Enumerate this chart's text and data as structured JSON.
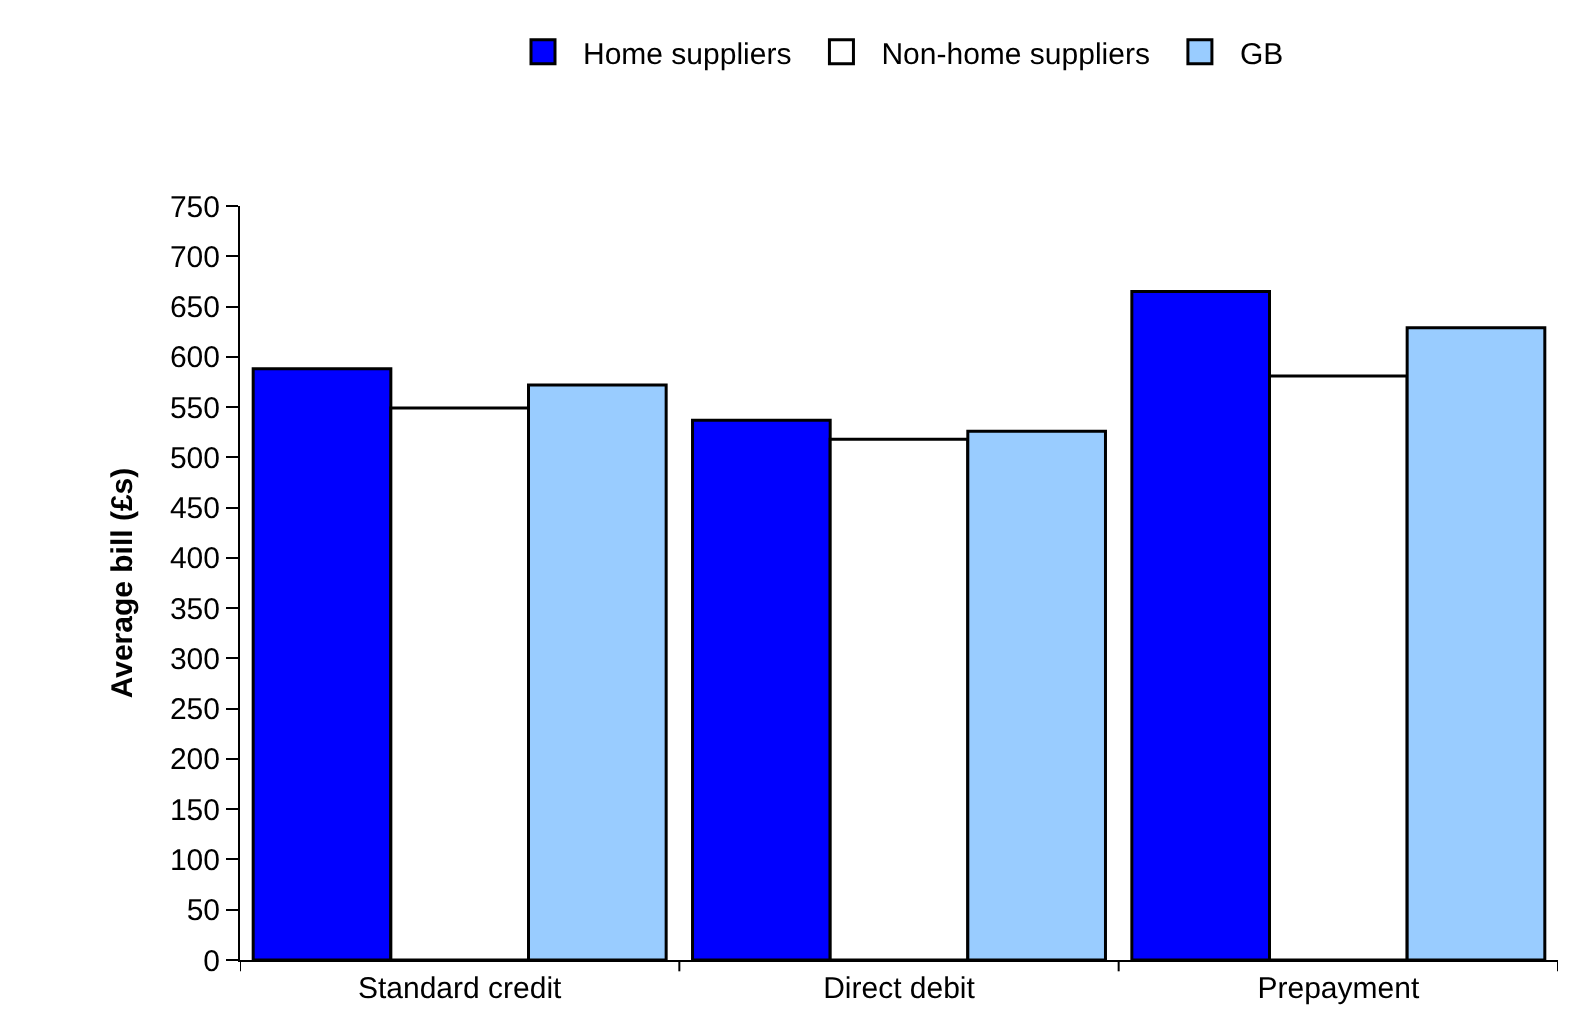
{
  "chart_data": {
    "type": "bar",
    "ylabel": "Average bill (£s)",
    "categories": [
      "Standard credit",
      "Direct debit",
      "Prepayment"
    ],
    "series": [
      {
        "name": "Home suppliers",
        "color": "#0000ff",
        "values": [
          588,
          537,
          665
        ]
      },
      {
        "name": "Non-home suppliers",
        "color": "#ffffff",
        "values": [
          549,
          518,
          581
        ]
      },
      {
        "name": "GB",
        "color": "#99ccff",
        "values": [
          572,
          526,
          629
        ]
      }
    ],
    "ylim": [
      0,
      750
    ],
    "yticks": [
      0,
      50,
      100,
      150,
      200,
      250,
      300,
      350,
      400,
      450,
      500,
      550,
      600,
      650,
      700,
      750
    ],
    "grid": false,
    "legend": "top"
  }
}
